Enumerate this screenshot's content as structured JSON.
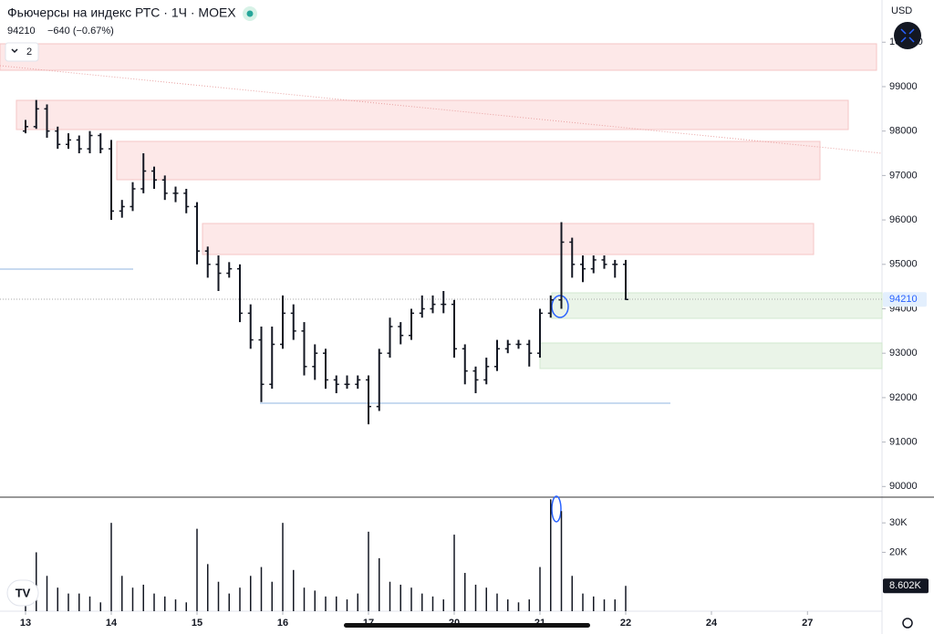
{
  "chart_data": {
    "type": "ohlc",
    "title": "Фьючерсы на индекс РТС · 1Ч · MOEX",
    "change": "−640 (−0.67%)",
    "indicator_count": "2",
    "currency": "USD",
    "x": [
      0,
      0.125,
      0.25,
      0.375,
      0.5,
      0.625,
      0.75,
      0.875,
      1,
      1.125,
      1.25,
      1.375,
      1.5,
      1.625,
      1.75,
      1.875,
      2,
      2.125,
      2.25,
      2.375,
      2.5,
      2.625,
      2.75,
      2.875,
      3,
      3.125,
      3.25,
      3.375,
      3.5,
      3.625,
      3.75,
      3.875,
      4,
      4.125,
      4.25,
      4.375,
      4.5,
      4.625,
      4.75,
      4.875,
      5,
      5.125,
      5.25,
      5.375,
      5.5,
      5.625,
      5.75,
      5.875,
      6,
      6.125,
      6.25,
      6.375,
      6.5,
      6.625,
      6.75,
      6.875,
      7
    ],
    "open": [
      98000,
      98100,
      98500,
      98000,
      97700,
      97800,
      97600,
      97900,
      97600,
      96200,
      96300,
      96700,
      97100,
      96900,
      96600,
      96600,
      96300,
      95300,
      95000,
      94800,
      94900,
      93900,
      93300,
      92300,
      93200,
      93900,
      93500,
      92700,
      93000,
      92400,
      92300,
      92300,
      92400,
      91800,
      93000,
      93600,
      93400,
      93900,
      94000,
      94100,
      94100,
      93100,
      92600,
      92400,
      92700,
      93100,
      93200,
      93200,
      93000,
      93900,
      94200,
      95500,
      95000,
      94900,
      95100,
      95000,
      95000
    ],
    "high": [
      98250,
      98700,
      98600,
      98100,
      97950,
      97900,
      98000,
      97950,
      97800,
      96450,
      96850,
      97500,
      97200,
      97000,
      96750,
      96700,
      96400,
      95400,
      95200,
      95050,
      95000,
      94100,
      93600,
      93600,
      94300,
      94100,
      93700,
      93200,
      93100,
      92500,
      92500,
      92500,
      92500,
      93100,
      93800,
      93700,
      94000,
      94300,
      94300,
      94400,
      94200,
      93200,
      92700,
      92900,
      93300,
      93300,
      93300,
      93300,
      94000,
      94300,
      95950,
      95600,
      95200,
      95200,
      95200,
      95100,
      95100
    ],
    "low": [
      97950,
      98050,
      97850,
      97600,
      97600,
      97500,
      97500,
      97500,
      96000,
      96050,
      96200,
      96600,
      96700,
      96450,
      96400,
      96150,
      95000,
      94700,
      94400,
      94700,
      93700,
      93100,
      91900,
      92200,
      93100,
      93300,
      92500,
      92400,
      92200,
      92100,
      92200,
      92200,
      91400,
      91700,
      92900,
      93200,
      93300,
      93800,
      93900,
      93900,
      92900,
      92300,
      92100,
      92300,
      92600,
      93000,
      93100,
      92700,
      92900,
      93800,
      94000,
      94700,
      94600,
      94800,
      94900,
      94700,
      94200
    ],
    "close": [
      98100,
      98500,
      98000,
      97700,
      97800,
      97600,
      97900,
      97600,
      96200,
      96300,
      96700,
      97100,
      96900,
      96600,
      96600,
      96300,
      95300,
      95000,
      94800,
      94900,
      93900,
      93300,
      92300,
      93200,
      93900,
      93500,
      92700,
      93000,
      92400,
      92300,
      92300,
      92400,
      91800,
      93000,
      93600,
      93400,
      93900,
      94000,
      94100,
      94100,
      93100,
      92600,
      92400,
      92700,
      93100,
      93200,
      93200,
      93000,
      93900,
      94200,
      95500,
      95000,
      94900,
      95100,
      95000,
      95000,
      94210
    ],
    "volume": [
      9000,
      20000,
      12000,
      8000,
      6000,
      6000,
      5000,
      3000,
      30000,
      12000,
      8000,
      9000,
      6000,
      5000,
      4000,
      3000,
      28000,
      16000,
      10000,
      6000,
      8000,
      12000,
      15000,
      10000,
      30000,
      14000,
      8000,
      7000,
      5000,
      5000,
      4000,
      6000,
      27000,
      18000,
      10000,
      9000,
      8000,
      6000,
      5000,
      4000,
      26000,
      13000,
      9000,
      8000,
      6000,
      4000,
      3000,
      4000,
      15000,
      38000,
      34000,
      12000,
      6000,
      5000,
      4000,
      4000,
      8602
    ],
    "volume_last_label": "8.602K",
    "color": "#131722",
    "volume_color": "#131722",
    "xlim": [
      -0.3,
      10
    ],
    "xticks": [
      {
        "value": 0,
        "label": "13"
      },
      {
        "value": 1,
        "label": "14"
      },
      {
        "value": 2,
        "label": "15"
      },
      {
        "value": 3,
        "label": "16"
      },
      {
        "value": 4,
        "label": "17"
      },
      {
        "value": 5,
        "label": "20"
      },
      {
        "value": 6,
        "label": "21"
      },
      {
        "value": 7,
        "label": "22"
      },
      {
        "value": 8,
        "label": "24"
      },
      {
        "value": 9.12,
        "label": "27"
      }
    ],
    "ylim": [
      89760,
      100950
    ],
    "yticks": [
      90000,
      91000,
      92000,
      93000,
      94000,
      95000,
      96000,
      97000,
      98000,
      99000,
      100000
    ],
    "y2lim": [
      0,
      37800
    ],
    "y2ticks": [
      {
        "value": 20000,
        "label": "20K"
      },
      {
        "value": 30000,
        "label": "30K"
      }
    ]
  }
}
